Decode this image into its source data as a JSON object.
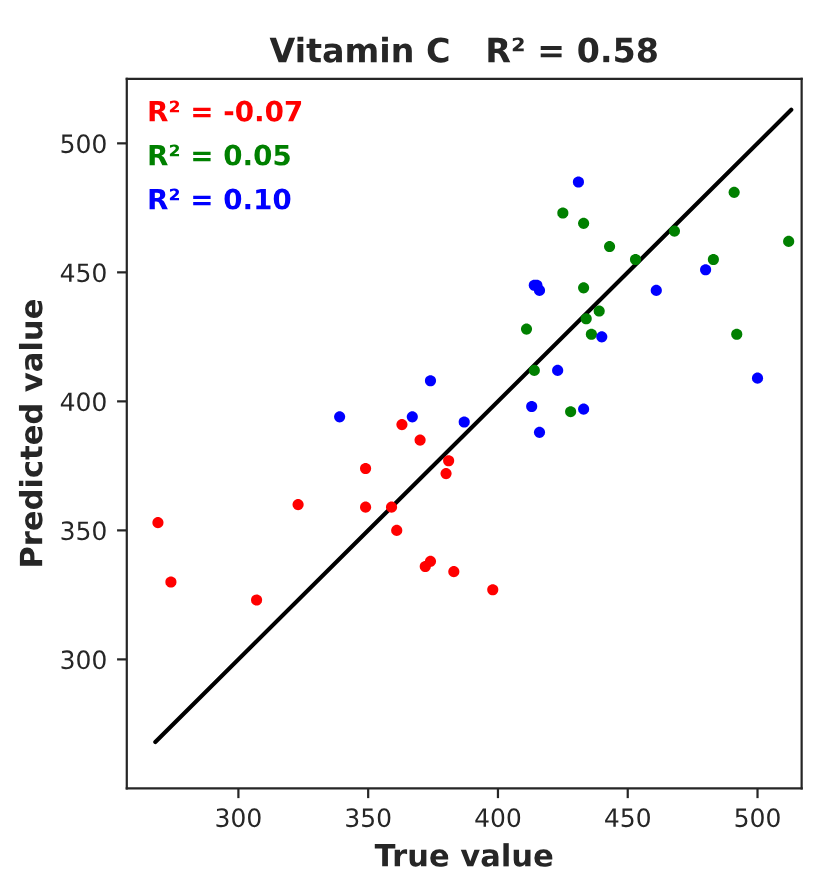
{
  "chart_data": {
    "type": "scatter",
    "title": "Vitamin C   R² = 0.58",
    "xlabel": "True value",
    "ylabel": "Predicted value",
    "xlim": [
      257,
      517
    ],
    "ylim": [
      250,
      525
    ],
    "xticks": [
      300,
      350,
      400,
      450,
      500
    ],
    "yticks": [
      300,
      350,
      400,
      450,
      500
    ],
    "grid": false,
    "marker": "circle",
    "annotations": [
      "R² = -0.07",
      "R² = 0.05",
      "R² = 0.10"
    ],
    "series": [
      {
        "color": "#ff0000",
        "x": [
          269,
          274,
          307,
          323,
          349,
          349,
          359,
          361,
          363,
          370,
          372,
          374,
          381,
          380,
          383,
          398
        ],
        "values": [
          353,
          330,
          323,
          360,
          374,
          359,
          359,
          350,
          391,
          385,
          336,
          338,
          377,
          372,
          334,
          327
        ]
      },
      {
        "color": "#008000",
        "x": [
          425,
          433,
          443,
          468,
          453,
          491,
          512,
          483,
          433,
          439,
          434,
          436,
          411,
          414,
          428,
          492
        ],
        "values": [
          473,
          469,
          460,
          466,
          455,
          481,
          462,
          455,
          444,
          435,
          432,
          426,
          428,
          412,
          396,
          426
        ]
      },
      {
        "color": "#0000ff",
        "x": [
          339,
          367,
          374,
          387,
          431,
          414,
          415,
          416,
          461,
          480,
          440,
          423,
          413,
          433,
          416,
          500
        ],
        "values": [
          394,
          394,
          408,
          392,
          485,
          445,
          445,
          443,
          443,
          451,
          425,
          412,
          398,
          397,
          388,
          409
        ]
      },
      {
        "type": "line",
        "marker": "none",
        "color": "#000000",
        "x": [
          268,
          513
        ],
        "values": [
          268,
          513
        ]
      }
    ]
  }
}
